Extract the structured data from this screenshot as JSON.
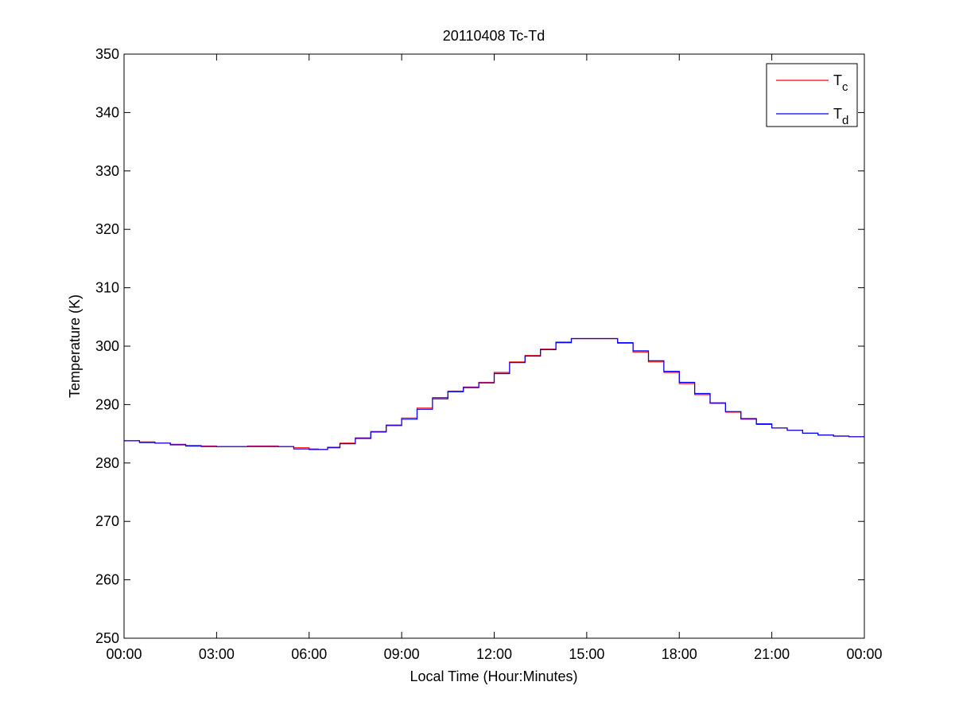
{
  "chart_data": {
    "type": "line",
    "title": "20110408 Tc-Td",
    "xlabel": "Local Time (Hour:Minutes)",
    "ylabel": "Temperature (K)",
    "xlim": [
      0,
      24
    ],
    "ylim": [
      250,
      350
    ],
    "x_ticks": [
      0,
      3,
      6,
      9,
      12,
      15,
      18,
      21,
      24
    ],
    "x_tick_labels": [
      "00:00",
      "03:00",
      "06:00",
      "09:00",
      "12:00",
      "15:00",
      "18:00",
      "21:00",
      "00:00"
    ],
    "y_ticks": [
      250,
      260,
      270,
      280,
      290,
      300,
      310,
      320,
      330,
      340,
      350
    ],
    "y_tick_labels": [
      "250",
      "260",
      "270",
      "280",
      "290",
      "300",
      "310",
      "320",
      "330",
      "340",
      "350"
    ],
    "grid": false,
    "legend_position": "top-right",
    "series": [
      {
        "name": "Tc",
        "legend_main": "T",
        "legend_sub": "c",
        "color": "#ff0000",
        "x": [
          0,
          0.5,
          1.0,
          1.5,
          2.0,
          2.5,
          3.0,
          3.5,
          4.0,
          4.5,
          5.0,
          5.5,
          6.0,
          6.3,
          6.6,
          7.0,
          7.5,
          8.0,
          8.5,
          9.0,
          9.5,
          10.0,
          10.5,
          11.0,
          11.5,
          12.0,
          12.5,
          13.0,
          13.5,
          14.0,
          14.5,
          15.0,
          15.5,
          16.0,
          16.5,
          17.0,
          17.5,
          18.0,
          18.5,
          19.0,
          19.5,
          20.0,
          20.5,
          21.0,
          21.5,
          22.0,
          22.5,
          23.0,
          23.5,
          24.0
        ],
        "values": [
          283.8,
          283.6,
          283.4,
          283.2,
          283.0,
          282.9,
          282.8,
          282.8,
          282.9,
          282.9,
          282.8,
          282.6,
          282.4,
          282.3,
          282.7,
          283.4,
          284.3,
          285.4,
          286.5,
          287.7,
          289.4,
          291.2,
          292.3,
          293.0,
          293.8,
          295.5,
          297.3,
          298.4,
          299.5,
          300.7,
          301.3,
          301.3,
          301.3,
          300.5,
          299.0,
          297.3,
          295.5,
          293.6,
          291.7,
          290.2,
          288.7,
          287.5,
          286.6,
          286.0,
          285.6,
          285.1,
          284.8,
          284.6,
          284.5,
          284.5
        ]
      },
      {
        "name": "Td",
        "legend_main": "T",
        "legend_sub": "d",
        "color": "#0000ff",
        "x": [
          0,
          0.5,
          1.0,
          1.5,
          2.0,
          2.5,
          3.0,
          3.5,
          4.0,
          4.5,
          5.0,
          5.5,
          6.0,
          6.3,
          6.6,
          7.0,
          7.5,
          8.0,
          8.5,
          9.0,
          9.5,
          10.0,
          10.5,
          11.0,
          11.5,
          12.0,
          12.5,
          13.0,
          13.5,
          14.0,
          14.5,
          15.0,
          15.5,
          16.0,
          16.5,
          17.0,
          17.5,
          18.0,
          18.5,
          19.0,
          19.5,
          20.0,
          20.5,
          21.0,
          21.5,
          22.0,
          22.5,
          23.0,
          23.5,
          24.0
        ],
        "values": [
          283.8,
          283.5,
          283.4,
          283.1,
          282.9,
          282.8,
          282.8,
          282.8,
          282.8,
          282.8,
          282.8,
          282.4,
          282.3,
          282.3,
          282.6,
          283.3,
          284.2,
          285.3,
          286.4,
          287.5,
          289.2,
          291.0,
          292.2,
          292.9,
          293.7,
          295.3,
          297.2,
          298.3,
          299.4,
          300.6,
          301.3,
          301.3,
          301.3,
          300.6,
          299.2,
          297.5,
          295.7,
          293.8,
          291.9,
          290.3,
          288.8,
          287.6,
          286.7,
          286.0,
          285.6,
          285.1,
          284.8,
          284.6,
          284.5,
          284.5
        ]
      }
    ]
  }
}
